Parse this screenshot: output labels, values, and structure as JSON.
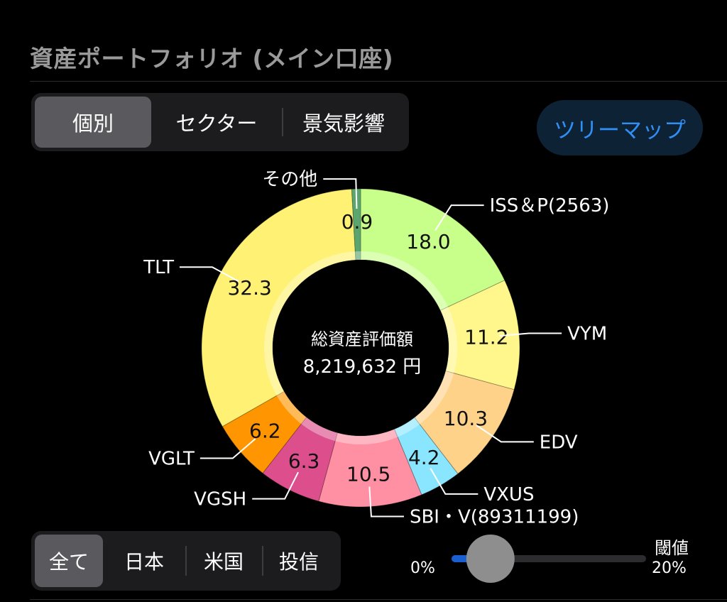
{
  "header": {
    "title": "資産ポートフォリオ (メイン口座)"
  },
  "view_tabs": [
    {
      "label": "個別",
      "active": true
    },
    {
      "label": "セクター",
      "active": false
    },
    {
      "label": "景気影響",
      "active": false
    }
  ],
  "treemap_button": {
    "label": "ツリーマップ",
    "color": "#2f8ff5"
  },
  "summary": {
    "label": "総資産評価額",
    "value": "8,219,632 円"
  },
  "chart_data": {
    "type": "pie",
    "donut": true,
    "slices": [
      {
        "name": "ISS＆P(2563)",
        "value": 18.0,
        "value_label": "18.0",
        "color": "#c8ff8a",
        "label_side": "right"
      },
      {
        "name": "VYM",
        "value": 11.2,
        "value_label": "11.2",
        "color": "#fff68c",
        "label_side": "right"
      },
      {
        "name": "EDV",
        "value": 10.3,
        "value_label": "10.3",
        "color": "#ffd28a",
        "label_side": "right"
      },
      {
        "name": "VXUS",
        "value": 4.2,
        "value_label": "4.2",
        "color": "#8ae6ff",
        "label_side": "right"
      },
      {
        "name": "SBI・V(89311199)",
        "value": 10.5,
        "value_label": "10.5",
        "color": "#ff8fa3",
        "label_side": "right"
      },
      {
        "name": "VGSH",
        "value": 6.3,
        "value_label": "6.3",
        "color": "#dc4f8c",
        "label_side": "left"
      },
      {
        "name": "VGLT",
        "value": 6.2,
        "value_label": "6.2",
        "color": "#ff9500",
        "label_side": "left"
      },
      {
        "name": "TLT",
        "value": 32.3,
        "value_label": "32.3",
        "color": "#fff173",
        "label_side": "left"
      },
      {
        "name": "その他",
        "value": 0.9,
        "value_label": "0.9",
        "color": "#5aa66e",
        "label_side": "left"
      }
    ]
  },
  "region_tabs": [
    {
      "label": "全て",
      "active": true
    },
    {
      "label": "日本",
      "active": false
    },
    {
      "label": "米国",
      "active": false
    },
    {
      "label": "投信",
      "active": false
    }
  ],
  "threshold": {
    "min_label": "0%",
    "max_label_title": "閾値",
    "max_label_value": "20%",
    "level_fraction": 0.2,
    "track_color": "#2c2c2e",
    "fill_color": "#1a5fd0"
  }
}
